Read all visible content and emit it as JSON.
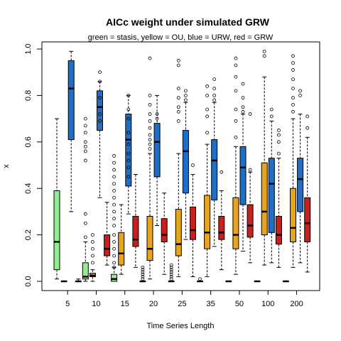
{
  "chart_data": {
    "type": "boxplot",
    "title": "AICc weight under simulated GRW",
    "subtitle": "green = stasis, yellow = OU, blue = URW, red = GRW",
    "xlabel": "Time Series Length",
    "ylabel": "x",
    "ylim": [
      0,
      1
    ],
    "yticks": [
      0.0,
      0.2,
      0.4,
      0.6,
      0.8,
      1.0
    ],
    "ytick_labels": [
      "0.0",
      "0.2",
      "0.4",
      "0.6",
      "0.8",
      "1.0"
    ],
    "categories": [
      "5",
      "10",
      "15",
      "20",
      "25",
      "35",
      "50",
      "100",
      "200"
    ],
    "series_colors": [
      "#90ee90",
      "#e8a41c",
      "#1e6fc9",
      "#c8201e"
    ],
    "boxes": [
      {
        "group": 0,
        "series": 0,
        "min": 0.01,
        "q1": 0.05,
        "median": 0.17,
        "q3": 0.39,
        "max": 0.7,
        "outliers": []
      },
      {
        "group": 0,
        "series": 1,
        "min": 0.0,
        "q1": 0.0,
        "median": 0.0,
        "q3": 0.0,
        "max": 0.0,
        "outliers": []
      },
      {
        "group": 0,
        "series": 2,
        "min": 0.3,
        "q1": 0.61,
        "median": 0.83,
        "q3": 0.95,
        "max": 0.99,
        "outliers": []
      },
      {
        "group": 0,
        "series": 3,
        "min": 0.0,
        "q1": 0.0,
        "median": 0.0,
        "q3": 0.0,
        "max": 0.01,
        "outliers": []
      },
      {
        "group": 1,
        "series": 0,
        "min": 0.0,
        "q1": 0.01,
        "median": 0.02,
        "q3": 0.08,
        "max": 0.17,
        "outliers": [
          0.19,
          0.25,
          0.29,
          0.52,
          0.56,
          0.58,
          0.6,
          0.64,
          0.67,
          0.7
        ]
      },
      {
        "group": 1,
        "series": 1,
        "min": 0.0,
        "q1": 0.02,
        "median": 0.025,
        "q3": 0.035,
        "max": 0.05,
        "outliers": [
          0.08,
          0.11,
          0.14,
          0.17,
          0.2
        ]
      },
      {
        "group": 1,
        "series": 2,
        "min": 0.36,
        "q1": 0.65,
        "median": 0.75,
        "q3": 0.82,
        "max": 0.86,
        "outliers": [
          0.69,
          0.72,
          0.79,
          0.86,
          0.9
        ]
      },
      {
        "group": 1,
        "series": 3,
        "min": 0.07,
        "q1": 0.11,
        "median": 0.14,
        "q3": 0.2,
        "max": 0.34,
        "outliers": []
      },
      {
        "group": 2,
        "series": 0,
        "min": 0.0,
        "q1": 0.0,
        "median": 0.01,
        "q3": 0.03,
        "max": 0.06,
        "outliers": [
          0.06,
          0.08,
          0.11,
          0.14,
          0.17,
          0.2,
          0.24,
          0.27,
          0.3,
          0.33,
          0.36,
          0.39,
          0.42,
          0.45,
          0.48,
          0.51,
          0.54
        ]
      },
      {
        "group": 2,
        "series": 1,
        "min": 0.03,
        "q1": 0.07,
        "median": 0.12,
        "q3": 0.21,
        "max": 0.33,
        "outliers": []
      },
      {
        "group": 2,
        "series": 2,
        "min": 0.29,
        "q1": 0.41,
        "median": 0.61,
        "q3": 0.72,
        "max": 0.8,
        "outliers": [
          0.45,
          0.49,
          0.52,
          0.55,
          0.59,
          0.64,
          0.7,
          0.74,
          0.8
        ]
      },
      {
        "group": 2,
        "series": 3,
        "min": 0.06,
        "q1": 0.15,
        "median": 0.18,
        "q3": 0.28,
        "max": 0.46,
        "outliers": []
      },
      {
        "group": 3,
        "series": 0,
        "min": 0.0,
        "q1": 0.0,
        "median": 0.0,
        "q3": 0.0,
        "max": 0.0,
        "outliers": [
          0.01,
          0.02,
          0.03,
          0.04,
          0.05,
          0.06
        ]
      },
      {
        "group": 3,
        "series": 1,
        "min": 0.01,
        "q1": 0.09,
        "median": 0.14,
        "q3": 0.28,
        "max": 0.55,
        "outliers": [
          0.57,
          0.59,
          0.61,
          0.63,
          0.66,
          0.69,
          0.72,
          0.76,
          0.8,
          0.96
        ]
      },
      {
        "group": 3,
        "series": 2,
        "min": 0.24,
        "q1": 0.45,
        "median": 0.6,
        "q3": 0.68,
        "max": 0.8,
        "outliers": [
          0.7,
          0.72
        ]
      },
      {
        "group": 3,
        "series": 3,
        "min": 0.03,
        "q1": 0.17,
        "median": 0.2,
        "q3": 0.27,
        "max": 0.38,
        "outliers": []
      },
      {
        "group": 4,
        "series": 0,
        "min": 0.0,
        "q1": 0.0,
        "median": 0.0,
        "q3": 0.0,
        "max": 0.0,
        "outliers": [
          0.01,
          0.02,
          0.03,
          0.04,
          0.05,
          0.06,
          0.07
        ]
      },
      {
        "group": 4,
        "series": 1,
        "min": 0.02,
        "q1": 0.11,
        "median": 0.16,
        "q3": 0.31,
        "max": 0.55,
        "outliers": [
          0.69,
          0.73,
          0.75,
          0.79,
          0.83,
          0.93,
          0.95
        ]
      },
      {
        "group": 4,
        "series": 2,
        "min": 0.18,
        "q1": 0.38,
        "median": 0.56,
        "q3": 0.65,
        "max": 0.77,
        "outliers": [
          0.78,
          0.8,
          0.82
        ]
      },
      {
        "group": 4,
        "series": 3,
        "min": 0.02,
        "q1": 0.18,
        "median": 0.22,
        "q3": 0.32,
        "max": 0.46,
        "outliers": [
          0.5
        ]
      },
      {
        "group": 5,
        "series": 0,
        "min": 0.0,
        "q1": 0.0,
        "median": 0.0,
        "q3": 0.0,
        "max": 0.0,
        "outliers": [
          0.01
        ]
      },
      {
        "group": 5,
        "series": 1,
        "min": 0.02,
        "q1": 0.14,
        "median": 0.21,
        "q3": 0.37,
        "max": 0.59,
        "outliers": [
          0.64,
          0.71,
          0.74,
          0.8,
          0.84
        ]
      },
      {
        "group": 5,
        "series": 2,
        "min": 0.15,
        "q1": 0.35,
        "median": 0.52,
        "q3": 0.61,
        "max": 0.77,
        "outliers": [
          0.78,
          0.8,
          0.83,
          0.87
        ]
      },
      {
        "group": 5,
        "series": 3,
        "min": 0.05,
        "q1": 0.18,
        "median": 0.21,
        "q3": 0.28,
        "max": 0.39,
        "outliers": [
          0.47
        ]
      },
      {
        "group": 6,
        "series": 0,
        "min": 0.0,
        "q1": 0.0,
        "median": 0.0,
        "q3": 0.0,
        "max": 0.0,
        "outliers": []
      },
      {
        "group": 6,
        "series": 1,
        "min": 0.03,
        "q1": 0.14,
        "median": 0.2,
        "q3": 0.36,
        "max": 0.58,
        "outliers": [
          0.62,
          0.69,
          0.74,
          0.82,
          0.88,
          0.93,
          0.96
        ]
      },
      {
        "group": 6,
        "series": 2,
        "min": 0.13,
        "q1": 0.33,
        "median": 0.49,
        "q3": 0.58,
        "max": 0.72,
        "outliers": [
          0.73,
          0.75,
          0.79,
          0.85
        ]
      },
      {
        "group": 6,
        "series": 3,
        "min": 0.08,
        "q1": 0.19,
        "median": 0.24,
        "q3": 0.33,
        "max": 0.47,
        "outliers": [
          0.48,
          0.72
        ]
      },
      {
        "group": 7,
        "series": 0,
        "min": 0.0,
        "q1": 0.0,
        "median": 0.0,
        "q3": 0.0,
        "max": 0.0,
        "outliers": []
      },
      {
        "group": 7,
        "series": 1,
        "min": 0.07,
        "q1": 0.2,
        "median": 0.3,
        "q3": 0.51,
        "max": 0.88,
        "outliers": [
          0.97,
          0.99
        ]
      },
      {
        "group": 7,
        "series": 2,
        "min": 0.08,
        "q1": 0.21,
        "median": 0.42,
        "q3": 0.53,
        "max": 0.69,
        "outliers": [
          0.71,
          0.74
        ]
      },
      {
        "group": 7,
        "series": 3,
        "min": 0.06,
        "q1": 0.16,
        "median": 0.2,
        "q3": 0.28,
        "max": 0.53,
        "outliers": [
          0.55,
          0.6,
          0.63,
          0.65
        ]
      },
      {
        "group": 8,
        "series": 0,
        "min": 0.0,
        "q1": 0.0,
        "median": 0.0,
        "q3": 0.0,
        "max": 0.0,
        "outliers": []
      },
      {
        "group": 8,
        "series": 1,
        "min": 0.06,
        "q1": 0.17,
        "median": 0.23,
        "q3": 0.4,
        "max": 0.7,
        "outliers": [
          0.73,
          0.76,
          0.79,
          0.83,
          0.87,
          0.91,
          0.94,
          0.97
        ]
      },
      {
        "group": 8,
        "series": 2,
        "min": 0.08,
        "q1": 0.3,
        "median": 0.44,
        "q3": 0.53,
        "max": 0.72,
        "outliers": [
          0.8,
          0.82
        ]
      },
      {
        "group": 8,
        "series": 3,
        "min": 0.04,
        "q1": 0.17,
        "median": 0.25,
        "q3": 0.36,
        "max": 0.62,
        "outliers": [
          0.66,
          0.71
        ]
      }
    ]
  }
}
